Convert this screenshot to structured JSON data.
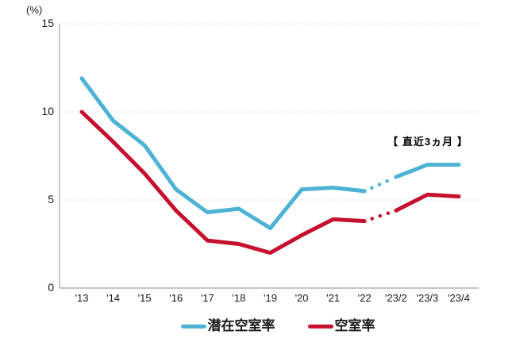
{
  "chart_data": {
    "type": "line",
    "unit_label": "(%)",
    "annotation": "【 直近3ヵ月 】",
    "categories": [
      "'13",
      "'14",
      "'15",
      "'16",
      "'17",
      "'18",
      "'19",
      "'20",
      "'21",
      "'22",
      "'23/2",
      "'23/3",
      "'23/4"
    ],
    "yticks": [
      0,
      5,
      10,
      15
    ],
    "ylim": [
      0,
      15
    ],
    "grid": "horizontal-dotted",
    "legend_position": "bottom-center",
    "series": [
      {
        "id": "potential-vacancy-rate",
        "name": "潜在空室率",
        "color": "#4DB3D5",
        "values": [
          11.9,
          9.5,
          8.1,
          5.6,
          4.3,
          4.5,
          3.4,
          5.6,
          5.7,
          5.5,
          6.3,
          7.0,
          7.0
        ]
      },
      {
        "id": "vacancy-rate",
        "name": "空室率",
        "color": "#C5112D",
        "values": [
          10.0,
          8.3,
          6.5,
          4.4,
          2.7,
          2.5,
          2.0,
          3.0,
          3.9,
          3.8,
          4.4,
          5.3,
          5.2
        ]
      }
    ],
    "dotted_segment": {
      "from_index": 9,
      "to_index": 10,
      "style": "dotted"
    },
    "colors": {
      "axis": "#A3A3A3",
      "gridline": "#DBDBDB",
      "text": "#1A1A1A"
    }
  }
}
